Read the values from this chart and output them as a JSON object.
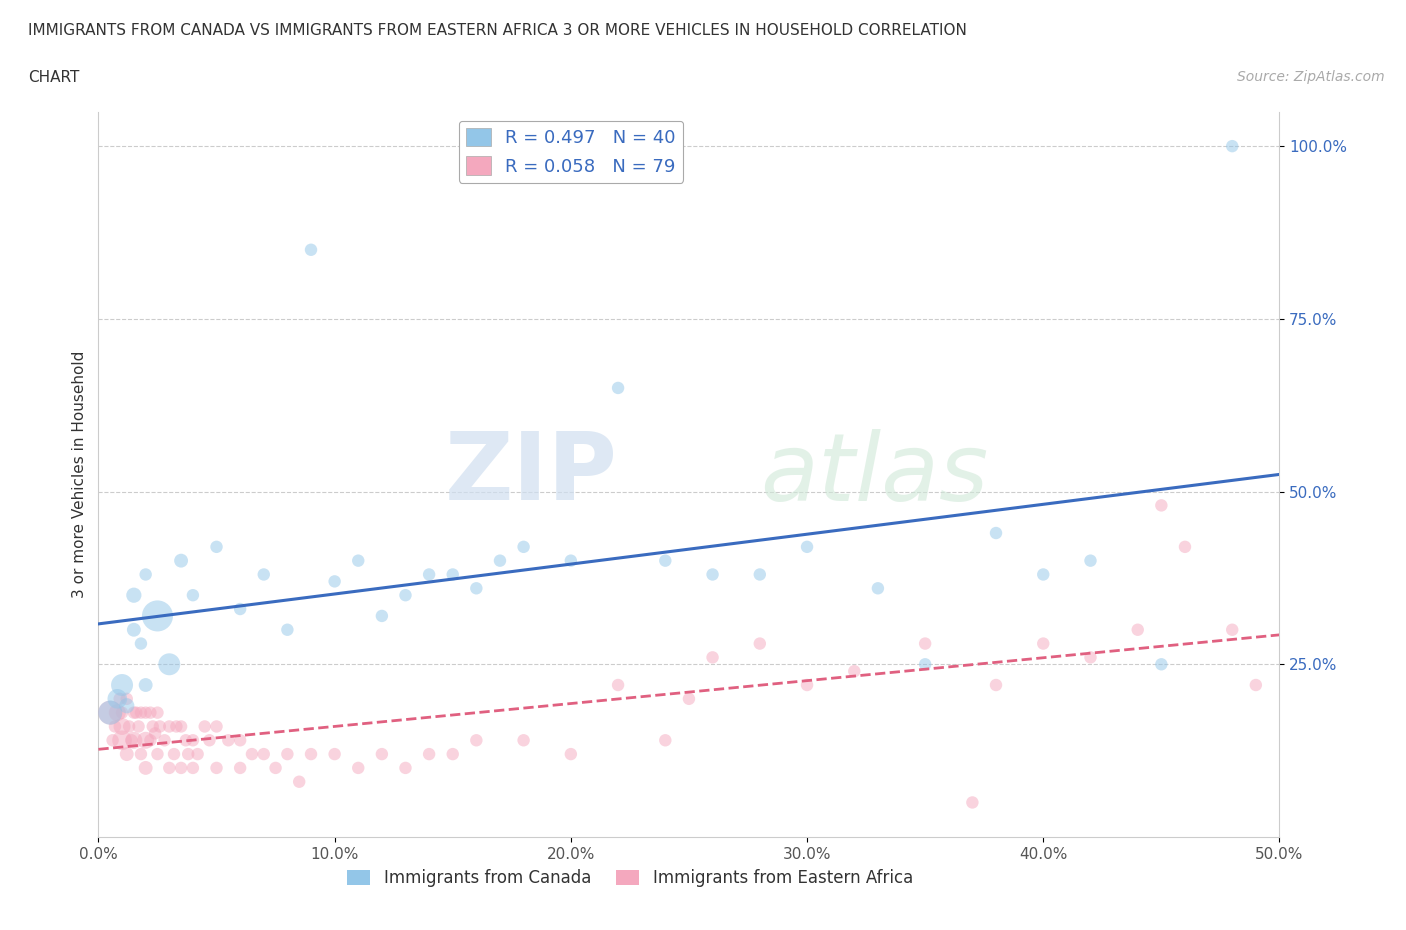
{
  "title_line1": "IMMIGRANTS FROM CANADA VS IMMIGRANTS FROM EASTERN AFRICA 3 OR MORE VEHICLES IN HOUSEHOLD CORRELATION",
  "title_line2": "CHART",
  "source_text": "Source: ZipAtlas.com",
  "ylabel": "3 or more Vehicles in Household",
  "xlim": [
    0.0,
    0.5
  ],
  "ylim": [
    0.0,
    1.05
  ],
  "xtick_labels": [
    "0.0%",
    "10.0%",
    "20.0%",
    "30.0%",
    "40.0%",
    "50.0%"
  ],
  "xtick_vals": [
    0.0,
    0.1,
    0.2,
    0.3,
    0.4,
    0.5
  ],
  "ytick_labels": [
    "25.0%",
    "50.0%",
    "75.0%",
    "100.0%"
  ],
  "ytick_vals": [
    0.25,
    0.5,
    0.75,
    1.0
  ],
  "legend_label1": "Immigrants from Canada",
  "legend_label2": "Immigrants from Eastern Africa",
  "r1": 0.497,
  "n1": 40,
  "r2": 0.058,
  "n2": 79,
  "color1": "#93c6e8",
  "color2": "#f4a8be",
  "line_color1": "#3a6bbf",
  "line_color2": "#e06080",
  "watermark_zip": "ZIP",
  "watermark_atlas": "atlas",
  "background_color": "#ffffff",
  "canada_x": [
    0.005,
    0.008,
    0.01,
    0.012,
    0.015,
    0.015,
    0.018,
    0.02,
    0.02,
    0.025,
    0.03,
    0.035,
    0.04,
    0.05,
    0.06,
    0.07,
    0.08,
    0.09,
    0.1,
    0.11,
    0.12,
    0.13,
    0.14,
    0.15,
    0.16,
    0.17,
    0.18,
    0.2,
    0.22,
    0.24,
    0.26,
    0.28,
    0.3,
    0.33,
    0.35,
    0.38,
    0.4,
    0.42,
    0.45,
    0.48
  ],
  "canada_y": [
    0.18,
    0.2,
    0.22,
    0.19,
    0.3,
    0.35,
    0.28,
    0.22,
    0.38,
    0.32,
    0.25,
    0.4,
    0.35,
    0.42,
    0.33,
    0.38,
    0.3,
    0.85,
    0.37,
    0.4,
    0.32,
    0.35,
    0.38,
    0.38,
    0.36,
    0.4,
    0.42,
    0.4,
    0.65,
    0.4,
    0.38,
    0.38,
    0.42,
    0.36,
    0.25,
    0.44,
    0.38,
    0.4,
    0.25,
    1.0
  ],
  "canada_size": [
    300,
    200,
    250,
    120,
    100,
    120,
    80,
    100,
    80,
    500,
    250,
    100,
    80,
    80,
    80,
    80,
    80,
    80,
    80,
    80,
    80,
    80,
    80,
    80,
    80,
    80,
    80,
    80,
    80,
    80,
    80,
    80,
    80,
    80,
    80,
    80,
    80,
    80,
    80,
    80
  ],
  "eafrica_x": [
    0.005,
    0.006,
    0.007,
    0.008,
    0.009,
    0.01,
    0.01,
    0.01,
    0.012,
    0.012,
    0.013,
    0.014,
    0.015,
    0.015,
    0.016,
    0.017,
    0.018,
    0.018,
    0.02,
    0.02,
    0.02,
    0.022,
    0.022,
    0.023,
    0.024,
    0.025,
    0.025,
    0.026,
    0.028,
    0.03,
    0.03,
    0.032,
    0.033,
    0.035,
    0.035,
    0.037,
    0.038,
    0.04,
    0.04,
    0.042,
    0.045,
    0.047,
    0.05,
    0.05,
    0.055,
    0.06,
    0.06,
    0.065,
    0.07,
    0.075,
    0.08,
    0.085,
    0.09,
    0.1,
    0.11,
    0.12,
    0.13,
    0.14,
    0.15,
    0.16,
    0.18,
    0.2,
    0.22,
    0.24,
    0.25,
    0.26,
    0.28,
    0.3,
    0.32,
    0.35,
    0.37,
    0.38,
    0.4,
    0.42,
    0.44,
    0.45,
    0.46,
    0.48,
    0.49
  ],
  "eafrica_y": [
    0.18,
    0.14,
    0.16,
    0.18,
    0.2,
    0.14,
    0.16,
    0.18,
    0.12,
    0.2,
    0.16,
    0.14,
    0.14,
    0.18,
    0.18,
    0.16,
    0.12,
    0.18,
    0.1,
    0.14,
    0.18,
    0.14,
    0.18,
    0.16,
    0.15,
    0.12,
    0.18,
    0.16,
    0.14,
    0.1,
    0.16,
    0.12,
    0.16,
    0.1,
    0.16,
    0.14,
    0.12,
    0.1,
    0.14,
    0.12,
    0.16,
    0.14,
    0.1,
    0.16,
    0.14,
    0.1,
    0.14,
    0.12,
    0.12,
    0.1,
    0.12,
    0.08,
    0.12,
    0.12,
    0.1,
    0.12,
    0.1,
    0.12,
    0.12,
    0.14,
    0.14,
    0.12,
    0.22,
    0.14,
    0.2,
    0.26,
    0.28,
    0.22,
    0.24,
    0.28,
    0.05,
    0.22,
    0.28,
    0.26,
    0.3,
    0.48,
    0.42,
    0.3,
    0.22
  ],
  "eafrica_size": [
    300,
    80,
    80,
    150,
    80,
    200,
    150,
    80,
    100,
    80,
    80,
    80,
    150,
    80,
    80,
    80,
    80,
    80,
    100,
    150,
    80,
    80,
    80,
    80,
    80,
    80,
    80,
    80,
    80,
    80,
    80,
    80,
    80,
    80,
    80,
    80,
    80,
    80,
    80,
    80,
    80,
    80,
    80,
    80,
    80,
    80,
    80,
    80,
    80,
    80,
    80,
    80,
    80,
    80,
    80,
    80,
    80,
    80,
    80,
    80,
    80,
    80,
    80,
    80,
    80,
    80,
    80,
    80,
    80,
    80,
    80,
    80,
    80,
    80,
    80,
    80,
    80,
    80,
    80
  ]
}
